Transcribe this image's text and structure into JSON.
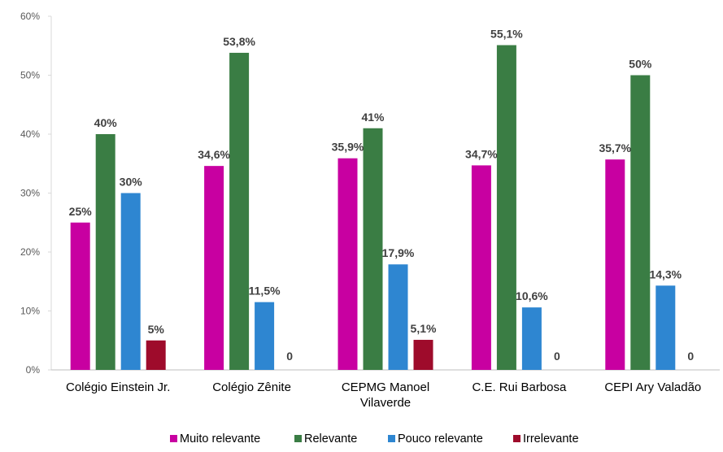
{
  "chart_data": {
    "type": "bar",
    "title": "",
    "xlabel": "",
    "ylabel": "",
    "ylim": [
      0,
      60
    ],
    "yticks": [
      0,
      10,
      20,
      30,
      40,
      50,
      60
    ],
    "ytick_labels": [
      "0%",
      "10%",
      "20%",
      "30%",
      "40%",
      "50%",
      "60%"
    ],
    "grid": false,
    "legend_position": "bottom",
    "categories": [
      [
        "Colégio Einstein Jr."
      ],
      [
        "Colégio Zênite"
      ],
      [
        "CEPMG Manoel",
        "Vilaverde"
      ],
      [
        "C.E. Rui Barbosa"
      ],
      [
        "CEPI Ary Valadão"
      ]
    ],
    "series": [
      {
        "name": "Muito relevante",
        "color": "#C800A1",
        "values": [
          25,
          34.6,
          35.9,
          34.7,
          35.7
        ],
        "labels": [
          "25%",
          "34,6%",
          "35,9%",
          "34,7%",
          "35,7%"
        ]
      },
      {
        "name": "Relevante",
        "color": "#3A7D44",
        "values": [
          40,
          53.8,
          41,
          55.1,
          50
        ],
        "labels": [
          "40%",
          "53,8%",
          "41%",
          "55,1%",
          "50%"
        ]
      },
      {
        "name": "Pouco relevante",
        "color": "#2E86D1",
        "values": [
          30,
          11.5,
          17.9,
          10.6,
          14.3
        ],
        "labels": [
          "30%",
          "11,5%",
          "17,9%",
          "10,6%",
          "14,3%"
        ]
      },
      {
        "name": "Irrelevante",
        "color": "#9E0B2B",
        "values": [
          5,
          0,
          5.1,
          0,
          0
        ],
        "labels": [
          "5%",
          "0",
          "5,1%",
          "0",
          "0"
        ]
      }
    ]
  }
}
